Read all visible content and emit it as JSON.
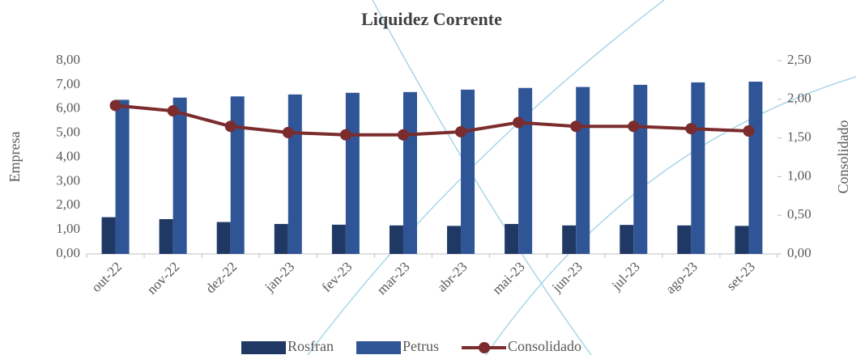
{
  "chart_data": {
    "type": "bar-line",
    "title": "Liquidez Corrente",
    "y_label": "Empresa",
    "y2_label": "Consolidado",
    "categories": [
      "out-22",
      "nov-22",
      "dez-22",
      "jan-23",
      "fev-23",
      "mar-23",
      "abr-23",
      "mai-23",
      "jun-23",
      "jul-23",
      "ago-23",
      "set-23"
    ],
    "series": [
      {
        "name": "Rosfran",
        "type": "bar",
        "color": "#1f3864",
        "values": [
          1.52,
          1.44,
          1.32,
          1.24,
          1.21,
          1.18,
          1.16,
          1.24,
          1.18,
          1.2,
          1.18,
          1.16
        ]
      },
      {
        "name": "Petrus",
        "type": "bar",
        "color": "#2f5597",
        "values": [
          6.38,
          6.47,
          6.52,
          6.6,
          6.67,
          6.7,
          6.8,
          6.87,
          6.91,
          7.0,
          7.1,
          7.13
        ]
      },
      {
        "name": "Consolidado",
        "type": "line",
        "axis": "y2",
        "color": "#7b2c2c",
        "values": [
          1.92,
          1.85,
          1.65,
          1.57,
          1.54,
          1.54,
          1.58,
          1.7,
          1.65,
          1.65,
          1.62,
          1.59
        ]
      }
    ],
    "ylim": [
      0,
      8
    ],
    "yticks": [
      {
        "value": 0,
        "label": "0,00"
      },
      {
        "value": 1,
        "label": "1,00"
      },
      {
        "value": 2,
        "label": "2,00"
      },
      {
        "value": 3,
        "label": "3,00"
      },
      {
        "value": 4,
        "label": "4,00"
      },
      {
        "value": 5,
        "label": "5,00"
      },
      {
        "value": 6,
        "label": "6,00"
      },
      {
        "value": 7,
        "label": "7,00"
      },
      {
        "value": 8,
        "label": "8,00"
      }
    ],
    "y2lim": [
      0,
      2.5
    ],
    "y2ticks": [
      {
        "value": 0,
        "label": "0,00"
      },
      {
        "value": 0.5,
        "label": "0,50"
      },
      {
        "value": 1,
        "label": "1,00"
      },
      {
        "value": 1.5,
        "label": "1,50"
      },
      {
        "value": 2,
        "label": "2,00"
      },
      {
        "value": 2.5,
        "label": "2,50"
      }
    ],
    "grid": false,
    "legend": "bottom"
  }
}
